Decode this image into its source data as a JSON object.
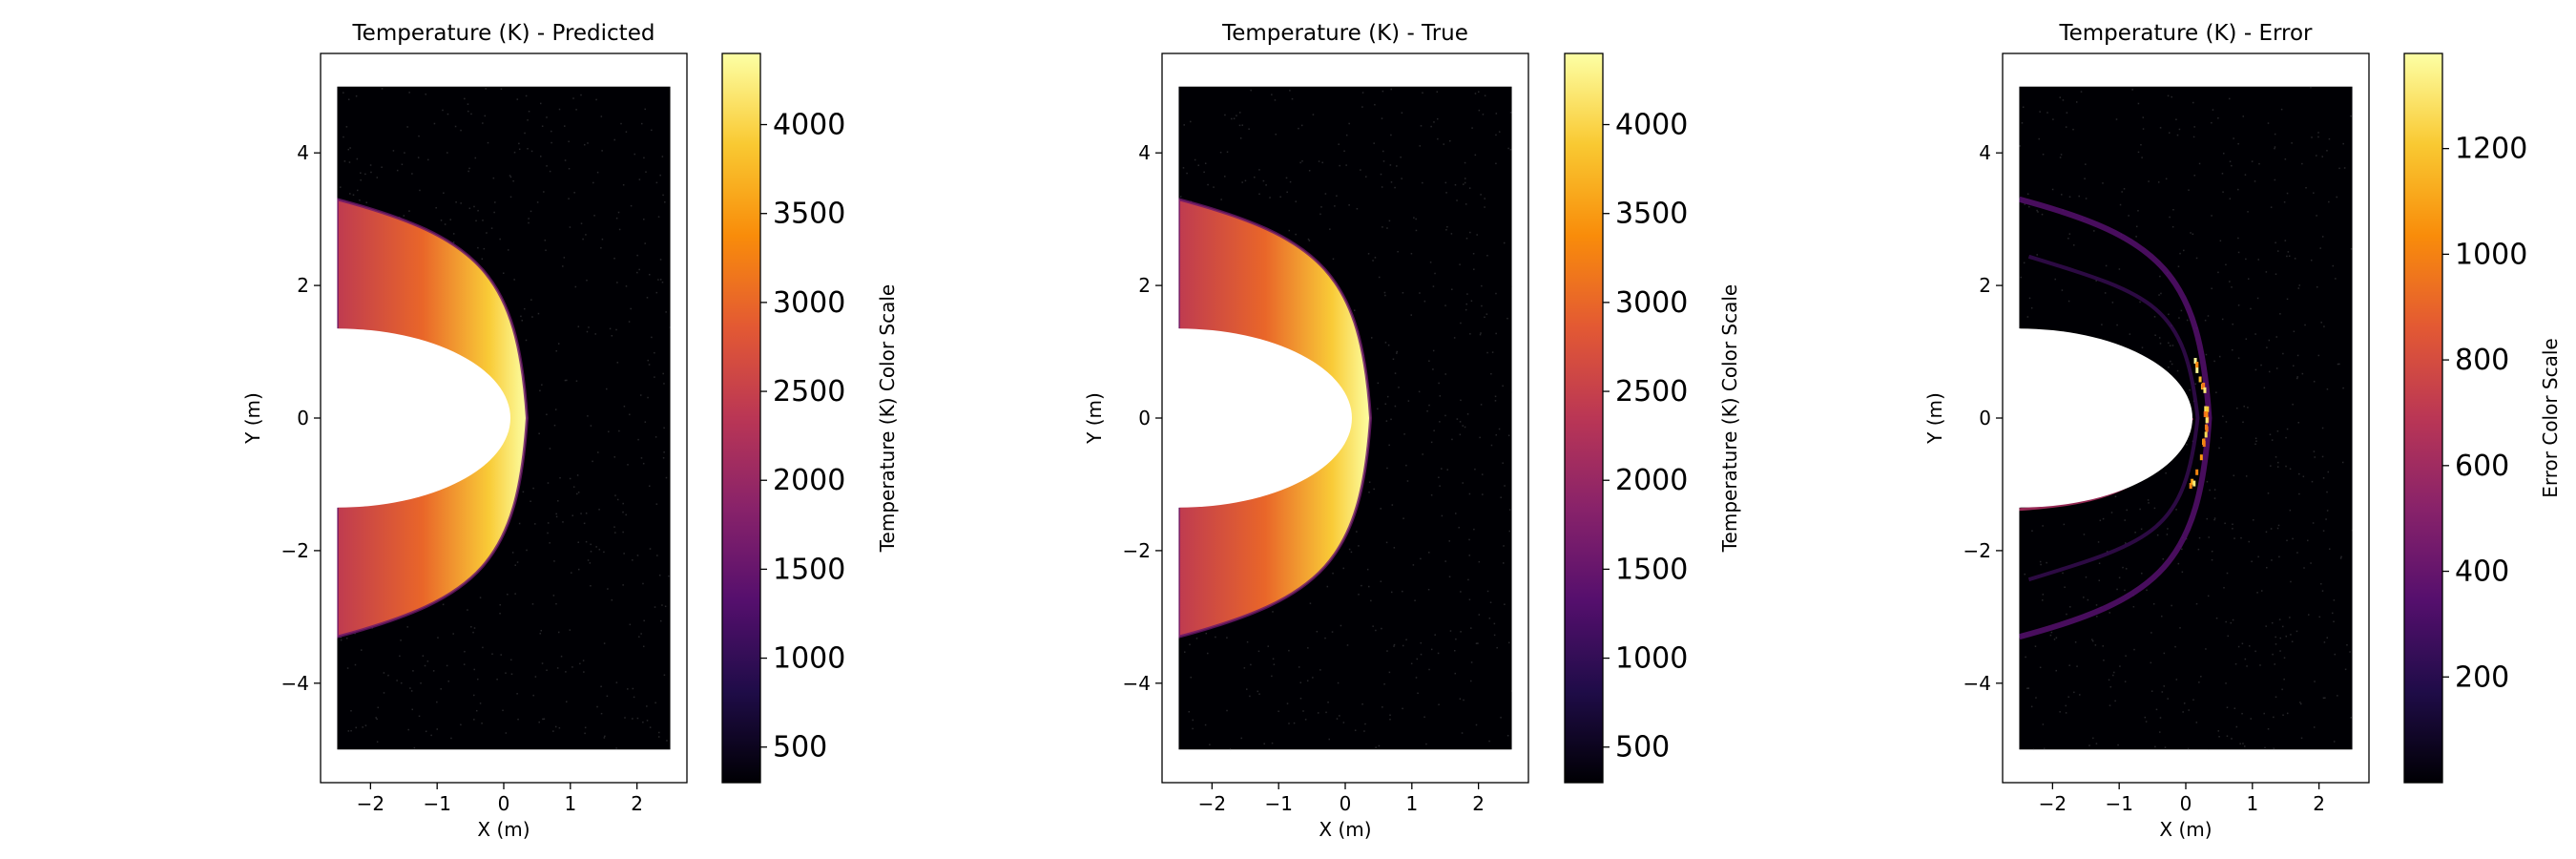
{
  "chart_data": [
    {
      "type": "heatmap",
      "title": "Temperature (K) - Predicted",
      "xlabel": "X (m)",
      "ylabel": "Y (m)",
      "xlim": [
        -2.75,
        2.75
      ],
      "ylim": [
        -5.5,
        5.5
      ],
      "x_ticks": [
        -2,
        -1,
        0,
        1,
        2
      ],
      "y_ticks": [
        -4,
        -2,
        0,
        2,
        4
      ],
      "x_tick_labels": [
        "−2",
        "−1",
        "0",
        "1",
        "2"
      ],
      "y_tick_labels": [
        "−4",
        "−2",
        "0",
        "2",
        "4"
      ],
      "domain": {
        "x": [
          -2.5,
          2.5
        ],
        "y": [
          -5,
          5
        ]
      },
      "body_ellipse": {
        "x_left": -2.5,
        "nose_x": 0.1,
        "half_height": 1.35
      },
      "shock": {
        "nose_x": 0.35,
        "edge_y": 3.3,
        "peak_temperature": 4400,
        "edge_temperature": 2500
      },
      "colormap": "inferno",
      "colorbar": {
        "label": "Temperature (K) Color Scale",
        "range": [
          300,
          4400
        ],
        "ticks": [
          500,
          1000,
          1500,
          2000,
          2500,
          3000,
          3500,
          4000
        ],
        "tick_labels": [
          "500",
          "1000",
          "1500",
          "2000",
          "2500",
          "3000",
          "3500",
          "4000"
        ]
      },
      "grid": false
    },
    {
      "type": "heatmap",
      "title": "Temperature (K) - True",
      "xlabel": "X (m)",
      "ylabel": "Y (m)",
      "xlim": [
        -2.75,
        2.75
      ],
      "ylim": [
        -5.5,
        5.5
      ],
      "x_ticks": [
        -2,
        -1,
        0,
        1,
        2
      ],
      "y_ticks": [
        -4,
        -2,
        0,
        2,
        4
      ],
      "x_tick_labels": [
        "−2",
        "−1",
        "0",
        "1",
        "2"
      ],
      "y_tick_labels": [
        "−4",
        "−2",
        "0",
        "2",
        "4"
      ],
      "domain": {
        "x": [
          -2.5,
          2.5
        ],
        "y": [
          -5,
          5
        ]
      },
      "body_ellipse": {
        "x_left": -2.5,
        "nose_x": 0.1,
        "half_height": 1.35
      },
      "shock": {
        "nose_x": 0.38,
        "edge_y": 3.3,
        "peak_temperature": 4400,
        "edge_temperature": 2500
      },
      "colormap": "inferno",
      "colorbar": {
        "label": "Temperature (K) Color Scale",
        "range": [
          300,
          4400
        ],
        "ticks": [
          500,
          1000,
          1500,
          2000,
          2500,
          3000,
          3500,
          4000
        ],
        "tick_labels": [
          "500",
          "1000",
          "1500",
          "2000",
          "2500",
          "3000",
          "3500",
          "4000"
        ]
      },
      "grid": false
    },
    {
      "type": "heatmap",
      "title": "Temperature (K) - Error",
      "xlabel": "X (m)",
      "ylabel": "Y (m)",
      "xlim": [
        -2.75,
        2.75
      ],
      "ylim": [
        -5.5,
        5.5
      ],
      "x_ticks": [
        -2,
        -1,
        0,
        1,
        2
      ],
      "y_ticks": [
        -4,
        -2,
        0,
        2,
        4
      ],
      "x_tick_labels": [
        "−2",
        "−1",
        "0",
        "1",
        "2"
      ],
      "y_tick_labels": [
        "−4",
        "−2",
        "0",
        "2",
        "4"
      ],
      "domain": {
        "x": [
          -2.5,
          2.5
        ],
        "y": [
          -5,
          5
        ]
      },
      "body_ellipse": {
        "x_left": -2.5,
        "nose_x": 0.1,
        "half_height": 1.35
      },
      "error_band": {
        "nose_x": 0.35,
        "edge_y": 3.3,
        "peak_error": 1380,
        "typical_error": 300
      },
      "colormap": "inferno",
      "colorbar": {
        "label": "Error Color Scale",
        "range": [
          0,
          1380
        ],
        "ticks": [
          200,
          400,
          600,
          800,
          1000,
          1200
        ],
        "tick_labels": [
          "200",
          "400",
          "600",
          "800",
          "1000",
          "1200"
        ]
      },
      "grid": false
    }
  ]
}
